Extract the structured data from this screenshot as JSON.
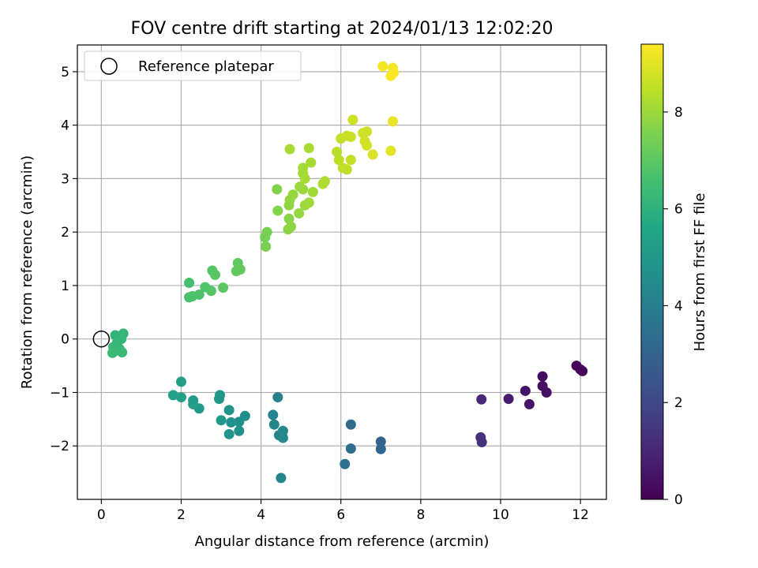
{
  "chart_data": {
    "type": "scatter",
    "title": "FOV centre drift starting at 2024/01/13 12:02:20",
    "xlabel": "Angular distance from reference (arcmin)",
    "ylabel": "Rotation from reference (arcmin)",
    "xlim": [
      -0.6,
      12.65
    ],
    "ylim": [
      -3.0,
      5.5
    ],
    "xticks": [
      0,
      2,
      4,
      6,
      8,
      10,
      12
    ],
    "yticks": [
      -2,
      -1,
      0,
      1,
      2,
      3,
      4,
      5
    ],
    "grid": true,
    "legend": {
      "position": "top-left",
      "entries": [
        "Reference platepar"
      ]
    },
    "reference_point": {
      "x": 0,
      "y": 0
    },
    "colorbar": {
      "label": "Hours from first FF file",
      "colormap": "viridis",
      "range": [
        0,
        9.4
      ],
      "ticks": [
        0,
        2,
        4,
        6,
        8
      ]
    },
    "points": [
      {
        "x": 11.9,
        "y": -0.5,
        "c": 0.1
      },
      {
        "x": 12.0,
        "y": -0.57,
        "c": 0.15
      },
      {
        "x": 12.05,
        "y": -0.6,
        "c": 0.2
      },
      {
        "x": 11.05,
        "y": -0.7,
        "c": 0.3
      },
      {
        "x": 11.05,
        "y": -0.88,
        "c": 0.35
      },
      {
        "x": 11.15,
        "y": -1.0,
        "c": 0.4
      },
      {
        "x": 10.62,
        "y": -0.97,
        "c": 0.5
      },
      {
        "x": 10.72,
        "y": -1.22,
        "c": 0.55
      },
      {
        "x": 10.2,
        "y": -1.12,
        "c": 0.7
      },
      {
        "x": 9.52,
        "y": -1.13,
        "c": 1.1
      },
      {
        "x": 9.5,
        "y": -1.84,
        "c": 1.3
      },
      {
        "x": 9.53,
        "y": -1.93,
        "c": 1.35
      },
      {
        "x": 7.0,
        "y": -1.92,
        "c": 3.0
      },
      {
        "x": 7.0,
        "y": -2.06,
        "c": 3.05
      },
      {
        "x": 6.25,
        "y": -1.6,
        "c": 3.3
      },
      {
        "x": 6.25,
        "y": -2.05,
        "c": 3.35
      },
      {
        "x": 6.1,
        "y": -2.34,
        "c": 3.45
      },
      {
        "x": 4.42,
        "y": -1.09,
        "c": 4.1
      },
      {
        "x": 4.3,
        "y": -1.42,
        "c": 4.15
      },
      {
        "x": 4.33,
        "y": -1.6,
        "c": 4.2
      },
      {
        "x": 4.45,
        "y": -1.8,
        "c": 4.25
      },
      {
        "x": 4.55,
        "y": -1.72,
        "c": 4.3
      },
      {
        "x": 4.55,
        "y": -1.85,
        "c": 4.35
      },
      {
        "x": 4.5,
        "y": -2.6,
        "c": 4.3
      },
      {
        "x": 3.6,
        "y": -1.44,
        "c": 4.6
      },
      {
        "x": 3.45,
        "y": -1.55,
        "c": 4.65
      },
      {
        "x": 3.45,
        "y": -1.72,
        "c": 4.7
      },
      {
        "x": 3.25,
        "y": -1.56,
        "c": 4.75
      },
      {
        "x": 3.2,
        "y": -1.33,
        "c": 4.8
      },
      {
        "x": 3.2,
        "y": -1.78,
        "c": 4.85
      },
      {
        "x": 3.0,
        "y": -1.52,
        "c": 4.9
      },
      {
        "x": 2.97,
        "y": -1.05,
        "c": 4.95
      },
      {
        "x": 2.95,
        "y": -1.12,
        "c": 5.0
      },
      {
        "x": 2.45,
        "y": -1.3,
        "c": 5.1
      },
      {
        "x": 2.3,
        "y": -1.15,
        "c": 5.15
      },
      {
        "x": 2.3,
        "y": -1.22,
        "c": 5.2
      },
      {
        "x": 2.0,
        "y": -0.8,
        "c": 5.3
      },
      {
        "x": 2.0,
        "y": -1.09,
        "c": 5.35
      },
      {
        "x": 1.8,
        "y": -1.05,
        "c": 5.4
      },
      {
        "x": 0.35,
        "y": 0.07,
        "c": 6.1
      },
      {
        "x": 0.55,
        "y": 0.1,
        "c": 6.15
      },
      {
        "x": 0.5,
        "y": 0.0,
        "c": 6.2
      },
      {
        "x": 0.4,
        "y": -0.05,
        "c": 6.2
      },
      {
        "x": 0.3,
        "y": -0.15,
        "c": 6.25
      },
      {
        "x": 0.45,
        "y": -0.18,
        "c": 6.25
      },
      {
        "x": 0.52,
        "y": -0.25,
        "c": 6.3
      },
      {
        "x": 0.35,
        "y": -0.22,
        "c": 6.3
      },
      {
        "x": 0.28,
        "y": -0.26,
        "c": 6.35
      },
      {
        "x": 2.2,
        "y": 1.05,
        "c": 6.6
      },
      {
        "x": 2.2,
        "y": 0.78,
        "c": 6.65
      },
      {
        "x": 2.28,
        "y": 0.8,
        "c": 6.7
      },
      {
        "x": 2.45,
        "y": 0.83,
        "c": 6.75
      },
      {
        "x": 2.6,
        "y": 0.97,
        "c": 6.8
      },
      {
        "x": 2.75,
        "y": 0.9,
        "c": 6.85
      },
      {
        "x": 2.78,
        "y": 1.28,
        "c": 6.9
      },
      {
        "x": 2.85,
        "y": 1.2,
        "c": 6.95
      },
      {
        "x": 3.05,
        "y": 0.96,
        "c": 7.0
      },
      {
        "x": 3.42,
        "y": 1.42,
        "c": 7.05
      },
      {
        "x": 3.38,
        "y": 1.27,
        "c": 7.1
      },
      {
        "x": 3.48,
        "y": 1.3,
        "c": 7.1
      },
      {
        "x": 4.1,
        "y": 1.9,
        "c": 7.4
      },
      {
        "x": 4.15,
        "y": 2.0,
        "c": 7.45
      },
      {
        "x": 4.12,
        "y": 1.73,
        "c": 7.5
      },
      {
        "x": 4.4,
        "y": 2.8,
        "c": 7.6
      },
      {
        "x": 4.42,
        "y": 2.4,
        "c": 7.65
      },
      {
        "x": 4.7,
        "y": 2.25,
        "c": 7.7
      },
      {
        "x": 4.68,
        "y": 2.05,
        "c": 7.75
      },
      {
        "x": 4.75,
        "y": 2.1,
        "c": 7.8
      },
      {
        "x": 4.7,
        "y": 2.5,
        "c": 7.8
      },
      {
        "x": 4.72,
        "y": 2.6,
        "c": 7.85
      },
      {
        "x": 4.8,
        "y": 2.7,
        "c": 7.9
      },
      {
        "x": 4.95,
        "y": 2.35,
        "c": 7.9
      },
      {
        "x": 4.97,
        "y": 2.85,
        "c": 7.95
      },
      {
        "x": 5.05,
        "y": 2.8,
        "c": 8.0
      },
      {
        "x": 5.1,
        "y": 2.5,
        "c": 8.0
      },
      {
        "x": 5.2,
        "y": 2.55,
        "c": 8.05
      },
      {
        "x": 5.3,
        "y": 2.75,
        "c": 8.05
      },
      {
        "x": 5.05,
        "y": 3.1,
        "c": 8.1
      },
      {
        "x": 5.05,
        "y": 3.2,
        "c": 8.1
      },
      {
        "x": 5.1,
        "y": 3.0,
        "c": 8.15
      },
      {
        "x": 5.25,
        "y": 3.3,
        "c": 8.15
      },
      {
        "x": 5.2,
        "y": 3.57,
        "c": 8.2
      },
      {
        "x": 4.72,
        "y": 3.55,
        "c": 8.2
      },
      {
        "x": 5.55,
        "y": 2.9,
        "c": 8.25
      },
      {
        "x": 5.6,
        "y": 2.95,
        "c": 8.25
      },
      {
        "x": 5.9,
        "y": 3.5,
        "c": 8.4
      },
      {
        "x": 5.95,
        "y": 3.35,
        "c": 8.45
      },
      {
        "x": 6.05,
        "y": 3.2,
        "c": 8.5
      },
      {
        "x": 6.15,
        "y": 3.17,
        "c": 8.5
      },
      {
        "x": 6.25,
        "y": 3.35,
        "c": 8.55
      },
      {
        "x": 6.0,
        "y": 3.75,
        "c": 8.55
      },
      {
        "x": 6.15,
        "y": 3.8,
        "c": 8.6
      },
      {
        "x": 6.25,
        "y": 3.78,
        "c": 8.6
      },
      {
        "x": 6.3,
        "y": 4.1,
        "c": 8.65
      },
      {
        "x": 6.55,
        "y": 3.85,
        "c": 8.7
      },
      {
        "x": 6.65,
        "y": 3.88,
        "c": 8.7
      },
      {
        "x": 6.6,
        "y": 3.7,
        "c": 8.75
      },
      {
        "x": 6.65,
        "y": 3.62,
        "c": 8.8
      },
      {
        "x": 6.8,
        "y": 3.45,
        "c": 8.85
      },
      {
        "x": 7.25,
        "y": 3.52,
        "c": 9.0
      },
      {
        "x": 7.3,
        "y": 4.07,
        "c": 9.1
      },
      {
        "x": 7.05,
        "y": 5.1,
        "c": 9.25
      },
      {
        "x": 7.3,
        "y": 5.07,
        "c": 9.3
      },
      {
        "x": 7.32,
        "y": 4.98,
        "c": 9.35
      },
      {
        "x": 7.25,
        "y": 4.92,
        "c": 9.4
      }
    ]
  }
}
